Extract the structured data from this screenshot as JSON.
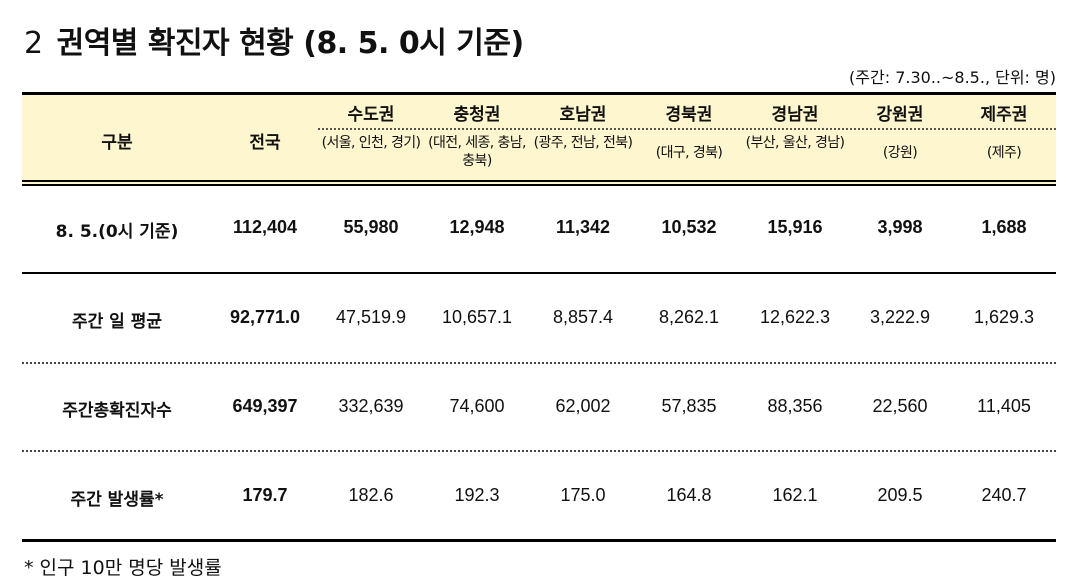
{
  "title": {
    "number": "2",
    "text": "권역별 확진자 현황 (8. 5. 0시 기준)"
  },
  "unit_note": "(주간: 7.30..~8.5., 단위: 명)",
  "table": {
    "header": {
      "category": "구분",
      "national": "전국",
      "regions": [
        {
          "name": "수도권",
          "sub": "(서울, 인천, 경기)"
        },
        {
          "name": "충청권",
          "sub": "(대전, 세종, 충남, 충북)"
        },
        {
          "name": "호남권",
          "sub": "(광주, 전남, 전북)"
        },
        {
          "name": "경북권",
          "sub": "(대구, 경북)"
        },
        {
          "name": "경남권",
          "sub": "(부산, 울산, 경남)"
        },
        {
          "name": "강원권",
          "sub": "(강원)"
        },
        {
          "name": "제주권",
          "sub": "(제주)"
        }
      ]
    },
    "rows": [
      {
        "label": "8. 5.(0시 기준)",
        "national": "112,404",
        "values": [
          "55,980",
          "12,948",
          "11,342",
          "10,532",
          "15,916",
          "3,998",
          "1,688"
        ]
      },
      {
        "label": "주간 일 평균",
        "national": "92,771.0",
        "values": [
          "47,519.9",
          "10,657.1",
          "8,857.4",
          "8,262.1",
          "12,622.3",
          "3,222.9",
          "1,629.3"
        ]
      },
      {
        "label": "주간총확진자수",
        "national": "649,397",
        "values": [
          "332,639",
          "74,600",
          "62,002",
          "57,835",
          "88,356",
          "22,560",
          "11,405"
        ]
      },
      {
        "label": "주간 발생률*",
        "national": "179.7",
        "values": [
          "182.6",
          "192.3",
          "175.0",
          "164.8",
          "162.1",
          "209.5",
          "240.7"
        ]
      }
    ]
  },
  "footnote": "* 인구 10만 명당 발생률"
}
